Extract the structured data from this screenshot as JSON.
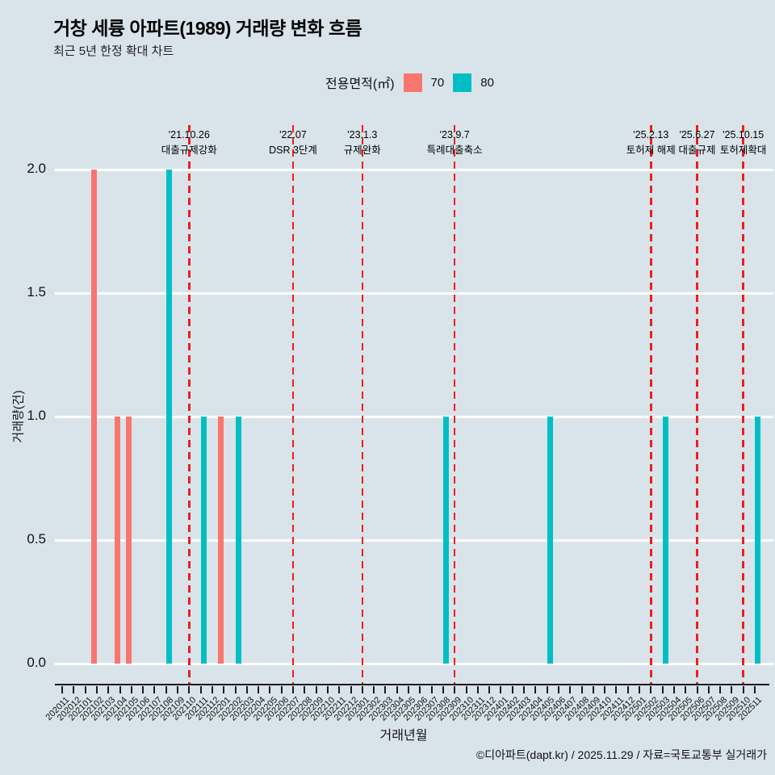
{
  "header": {
    "title": "거창 세륭 아파트(1989) 거래량 변화 흐름",
    "subtitle": "최근 5년 한정 확대 차트"
  },
  "legend": {
    "label": "전용면적(㎡)",
    "items": [
      {
        "name": "70",
        "color": "#F8766D"
      },
      {
        "name": "80",
        "color": "#00BFC4"
      }
    ]
  },
  "chart_data": {
    "type": "bar",
    "title": "거창 세륭 아파트(1989) 거래량 변화 흐름",
    "subtitle": "최근 5년 한정 확대 차트",
    "xlabel": "거래년월",
    "ylabel": "거래량(건)",
    "ylim": [
      0.0,
      2.0
    ],
    "yticks": [
      "0.0",
      "0.5",
      "1.0",
      "1.5",
      "2.0"
    ],
    "grid": "horizontal white gridlines on light blue background",
    "legend_position": "top",
    "categories": [
      "202011",
      "202012",
      "202101",
      "202102",
      "202103",
      "202104",
      "202105",
      "202106",
      "202107",
      "202108",
      "202109",
      "202110",
      "202111",
      "202112",
      "202201",
      "202202",
      "202203",
      "202204",
      "202205",
      "202206",
      "202207",
      "202208",
      "202209",
      "202210",
      "202211",
      "202212",
      "202301",
      "202302",
      "202303",
      "202304",
      "202305",
      "202306",
      "202307",
      "202308",
      "202309",
      "202310",
      "202311",
      "202312",
      "202401",
      "202402",
      "202403",
      "202404",
      "202405",
      "202406",
      "202407",
      "202408",
      "202409",
      "202410",
      "202411",
      "202412",
      "202501",
      "202502",
      "202503",
      "202504",
      "202505",
      "202506",
      "202507",
      "202508",
      "202509",
      "202510",
      "202511"
    ],
    "series": [
      {
        "name": "70",
        "color": "#F8766D",
        "points": [
          {
            "month": "202102",
            "count": 2
          },
          {
            "month": "202104",
            "count": 1
          },
          {
            "month": "202105",
            "count": 1
          },
          {
            "month": "202201",
            "count": 1
          }
        ]
      },
      {
        "name": "80",
        "color": "#00BFC4",
        "points": [
          {
            "month": "202108",
            "count": 2
          },
          {
            "month": "202111",
            "count": 1
          },
          {
            "month": "202202",
            "count": 1
          },
          {
            "month": "202308",
            "count": 1
          },
          {
            "month": "202405",
            "count": 1
          },
          {
            "month": "202503",
            "count": 1
          },
          {
            "month": "202511",
            "count": 1
          }
        ]
      }
    ],
    "annotations": [
      {
        "date": "'21.10.26",
        "label": "대출규제강화",
        "month": "202110"
      },
      {
        "date": "'22.07",
        "label": "DSR 3단계",
        "month": "202207"
      },
      {
        "date": "'23.1.3",
        "label": "규제완화",
        "month": "202301"
      },
      {
        "date": "'23.9.7",
        "label": "특례대출축소",
        "month": "202309"
      },
      {
        "date": "'25.2.13",
        "label": "토허제 해제",
        "month": "202502"
      },
      {
        "date": "'25.6.27",
        "label": "대출규제",
        "month": "202506"
      },
      {
        "date": "'25.10.15",
        "label": "토허제확대",
        "month": "202510"
      }
    ]
  },
  "footer": {
    "credit": "©디아파트(dapt.kr) / 2025.11.29 / 자료=국토교통부 실거래가"
  }
}
